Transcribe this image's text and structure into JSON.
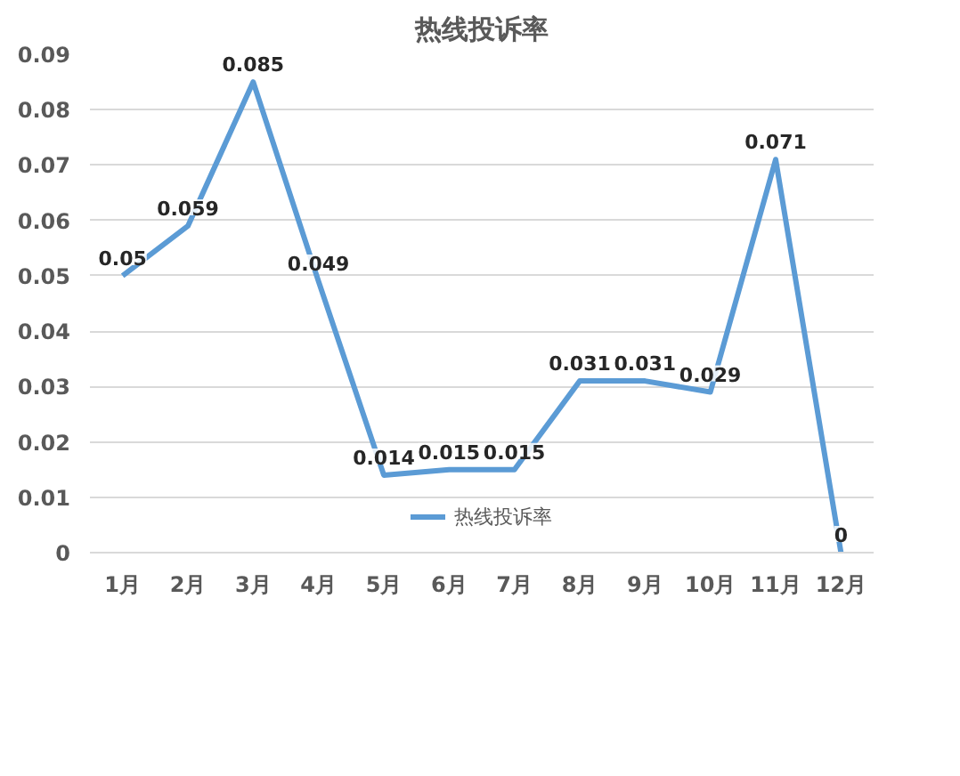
{
  "chart_data": {
    "type": "line",
    "title": "热线投诉率",
    "categories": [
      "1月",
      "2月",
      "3月",
      "4月",
      "5月",
      "6月",
      "7月",
      "8月",
      "9月",
      "10月",
      "11月",
      "12月"
    ],
    "series": [
      {
        "name": "热线投诉率",
        "color": "#5b9bd5",
        "values": [
          0.05,
          0.059,
          0.085,
          0.049,
          0.014,
          0.015,
          0.015,
          0.031,
          0.031,
          0.029,
          0.071,
          0
        ]
      }
    ],
    "ylim": [
      0,
      0.09
    ],
    "yticks": [
      0,
      0.01,
      0.02,
      0.03,
      0.04,
      0.05,
      0.06,
      0.07,
      0.08,
      0.09
    ],
    "grid": "y",
    "legend": "bottom",
    "data_labels": true,
    "marker": "none"
  }
}
